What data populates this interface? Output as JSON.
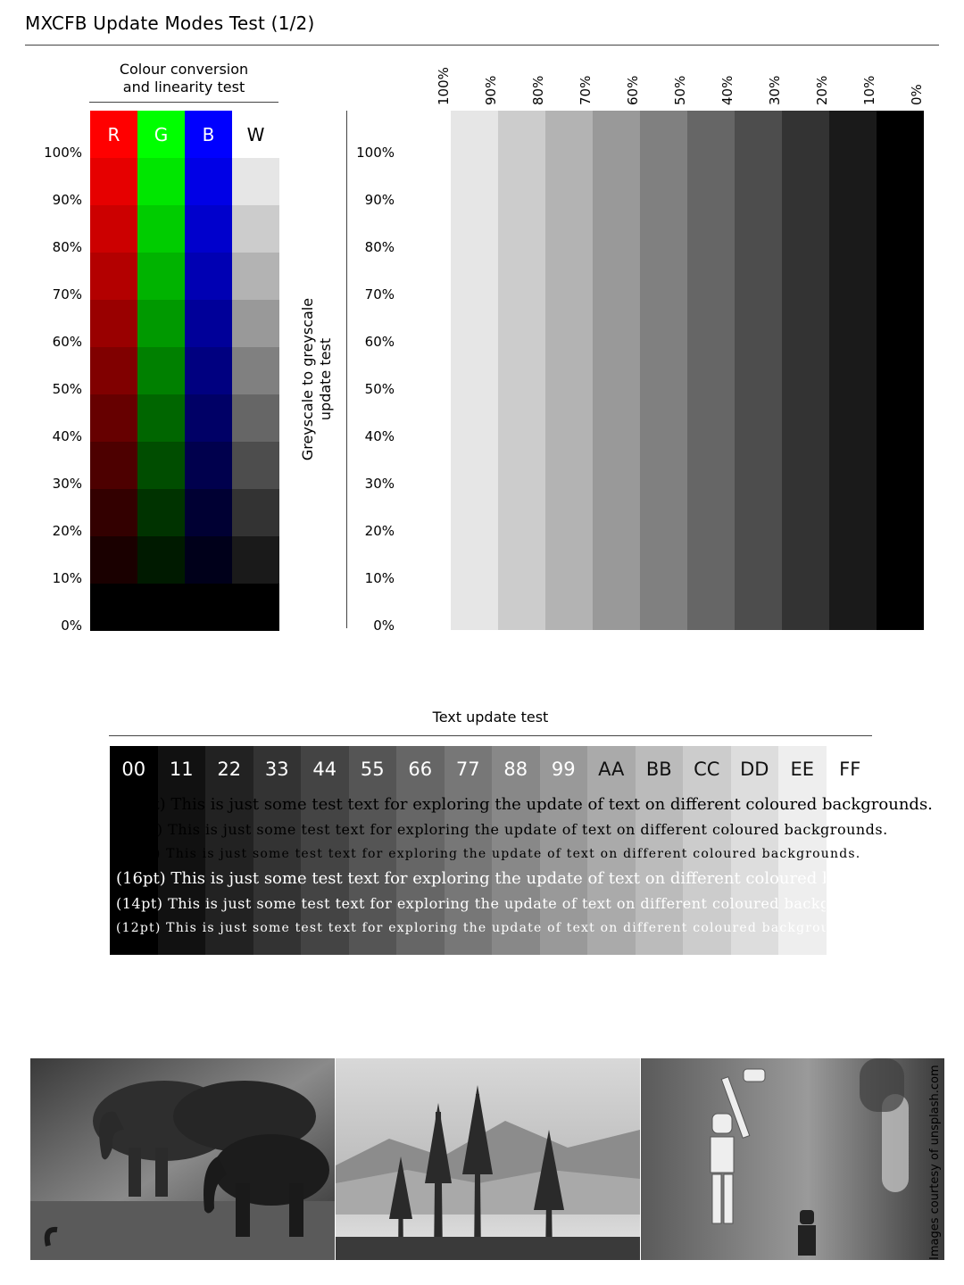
{
  "title": "MXCFB Update Modes Test  (1/2)",
  "colour_test": {
    "heading_line1": "Colour conversion",
    "heading_line2": "and linearity test",
    "columns": [
      "R",
      "G",
      "B",
      "W"
    ],
    "levels": [
      "100%",
      "90%",
      "80%",
      "70%",
      "60%",
      "50%",
      "40%",
      "30%",
      "20%",
      "10%",
      "0%"
    ],
    "colors": {
      "R": [
        "#ff0000",
        "#e60000",
        "#cc0000",
        "#b30000",
        "#990000",
        "#800000",
        "#660000",
        "#4d0000",
        "#330000",
        "#1a0000",
        "#000000"
      ],
      "G": [
        "#00ff00",
        "#00e600",
        "#00cc00",
        "#00b300",
        "#009900",
        "#008000",
        "#006600",
        "#004d00",
        "#003300",
        "#001a00",
        "#000000"
      ],
      "B": [
        "#0000ff",
        "#0000e6",
        "#0000cc",
        "#0000b3",
        "#000099",
        "#000080",
        "#000066",
        "#00004d",
        "#000033",
        "#00001a",
        "#000000"
      ],
      "W": [
        "#ffffff",
        "#e6e6e6",
        "#cccccc",
        "#b3b3b3",
        "#999999",
        "#808080",
        "#666666",
        "#4d4d4d",
        "#333333",
        "#1a1a1a",
        "#000000"
      ]
    }
  },
  "greyscale_test": {
    "heading_line1": "Greyscale to greyscale",
    "heading_line2": "update test",
    "top_labels": [
      "100%",
      "90%",
      "80%",
      "70%",
      "60%",
      "50%",
      "40%",
      "30%",
      "20%",
      "10%",
      "0%"
    ],
    "side_labels": [
      "100%",
      "90%",
      "80%",
      "70%",
      "60%",
      "50%",
      "40%",
      "30%",
      "20%",
      "10%",
      "0%"
    ],
    "colors": [
      "#ffffff",
      "#e6e6e6",
      "#cccccc",
      "#b3b3b3",
      "#999999",
      "#808080",
      "#666666",
      "#4d4d4d",
      "#333333",
      "#1a1a1a",
      "#000000"
    ]
  },
  "text_test": {
    "heading": "Text update test",
    "hex_labels": [
      "00",
      "11",
      "22",
      "33",
      "44",
      "55",
      "66",
      "77",
      "88",
      "99",
      "AA",
      "BB",
      "CC",
      "DD",
      "EE",
      "FF"
    ],
    "background_colors": [
      "#000000",
      "#111111",
      "#222222",
      "#333333",
      "#444444",
      "#555555",
      "#666666",
      "#777777",
      "#888888",
      "#999999",
      "#aaaaaa",
      "#bbbbbb",
      "#cccccc",
      "#dddddd",
      "#eeeeee",
      "#ffffff"
    ],
    "sample_sentence": "This is just some test text for exploring the update of text on different coloured backgrounds.",
    "dark_lines": [
      {
        "size_label": "(16pt)",
        "text": "(16pt) This is just some test text for exploring the update of text on different coloured backgrounds."
      },
      {
        "size_label": "(14pt)",
        "text": "(14pt) This is just some test text for exploring the update of text on different coloured backgrounds."
      },
      {
        "size_label": "(12pt)",
        "text": "(12pt) This is just some test text for exploring the update of text on different coloured backgrounds."
      }
    ],
    "light_lines": [
      {
        "size_label": "(16pt)",
        "text": "(16pt) This is just some test text for exploring the update of text on different coloured backgrou"
      },
      {
        "size_label": "(14pt)",
        "text": "(14pt) This is just some test text for exploring the update of text on different coloured backgrou"
      },
      {
        "size_label": "(12pt)",
        "text": "(12pt) This is just some test text for exploring the update of text on different coloured backgrou"
      }
    ]
  },
  "images": {
    "credit": "Images courtesy of unsplash.com",
    "items": [
      {
        "subject": "elephants",
        "icon": "elephant-photo"
      },
      {
        "subject": "misty forest and mountains",
        "icon": "forest-photo"
      },
      {
        "subject": "stormtrooper toy figures",
        "icon": "stormtrooper-photo"
      }
    ]
  }
}
